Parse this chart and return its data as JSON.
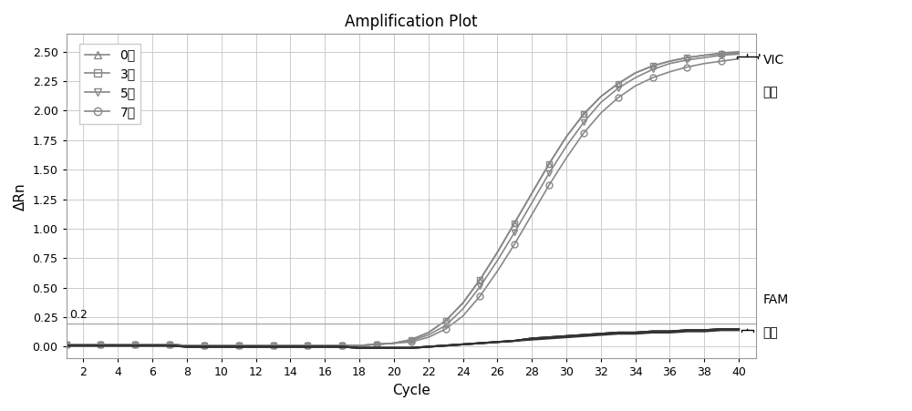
{
  "title": "Amplification Plot",
  "xlabel": "Cycle",
  "ylabel": "ΔRn",
  "xlim": [
    1,
    41
  ],
  "ylim": [
    -0.1,
    2.65
  ],
  "xticks": [
    2,
    4,
    6,
    8,
    10,
    12,
    14,
    16,
    18,
    20,
    22,
    24,
    26,
    28,
    30,
    32,
    34,
    36,
    38,
    40
  ],
  "yticks": [
    0.0,
    0.25,
    0.5,
    0.75,
    1.0,
    1.25,
    1.5,
    1.75,
    2.0,
    2.25,
    2.5
  ],
  "threshold_line": 0.2,
  "threshold_label": "0.2",
  "legend_labels": [
    "0天",
    "3天",
    "5天",
    "7天"
  ],
  "legend_markers": [
    "^",
    "s",
    "v",
    "o"
  ],
  "vic_label": "VIC",
  "vic_sub_label": "通道",
  "fam_label": "FAM",
  "fam_sub_label": "通道",
  "line_color": "#888888",
  "fam_color": "#333333",
  "bg_color": "#ffffff",
  "grid_color": "#cccccc",
  "cycles": [
    1,
    2,
    3,
    4,
    5,
    6,
    7,
    8,
    9,
    10,
    11,
    12,
    13,
    14,
    15,
    16,
    17,
    18,
    19,
    20,
    21,
    22,
    23,
    24,
    25,
    26,
    27,
    28,
    29,
    30,
    31,
    32,
    33,
    34,
    35,
    36,
    37,
    38,
    39,
    40
  ],
  "vic_curves": {
    "0day": [
      0.02,
      0.02,
      0.02,
      0.02,
      0.02,
      0.02,
      0.02,
      0.01,
      0.01,
      0.01,
      0.01,
      0.01,
      0.01,
      0.01,
      0.01,
      0.01,
      0.01,
      0.01,
      0.02,
      0.03,
      0.06,
      0.12,
      0.22,
      0.37,
      0.57,
      0.8,
      1.05,
      1.3,
      1.55,
      1.78,
      1.97,
      2.12,
      2.23,
      2.32,
      2.38,
      2.42,
      2.45,
      2.47,
      2.49,
      2.5
    ],
    "3day": [
      0.02,
      0.02,
      0.02,
      0.02,
      0.02,
      0.02,
      0.02,
      0.01,
      0.01,
      0.01,
      0.01,
      0.01,
      0.01,
      0.01,
      0.01,
      0.01,
      0.01,
      0.01,
      0.02,
      0.03,
      0.06,
      0.12,
      0.22,
      0.37,
      0.57,
      0.8,
      1.05,
      1.3,
      1.55,
      1.78,
      1.97,
      2.12,
      2.23,
      2.32,
      2.38,
      2.42,
      2.45,
      2.47,
      2.48,
      2.49
    ],
    "5day": [
      0.02,
      0.02,
      0.02,
      0.02,
      0.02,
      0.02,
      0.02,
      0.01,
      0.01,
      0.01,
      0.01,
      0.01,
      0.01,
      0.01,
      0.01,
      0.01,
      0.01,
      0.01,
      0.02,
      0.03,
      0.05,
      0.1,
      0.18,
      0.32,
      0.51,
      0.73,
      0.97,
      1.22,
      1.47,
      1.7,
      1.9,
      2.07,
      2.19,
      2.28,
      2.35,
      2.4,
      2.43,
      2.45,
      2.47,
      2.48
    ],
    "7day": [
      0.02,
      0.02,
      0.02,
      0.02,
      0.02,
      0.02,
      0.02,
      0.01,
      0.01,
      0.01,
      0.01,
      0.01,
      0.01,
      0.01,
      0.01,
      0.01,
      0.01,
      0.01,
      0.02,
      0.03,
      0.04,
      0.08,
      0.15,
      0.26,
      0.43,
      0.64,
      0.87,
      1.12,
      1.37,
      1.6,
      1.81,
      1.98,
      2.11,
      2.21,
      2.28,
      2.33,
      2.37,
      2.4,
      2.42,
      2.44
    ]
  },
  "fam_curves": {
    "0day": [
      0.01,
      0.01,
      0.01,
      0.01,
      0.01,
      0.01,
      0.01,
      0.0,
      0.0,
      0.0,
      0.0,
      0.0,
      0.0,
      0.0,
      0.0,
      0.0,
      0.0,
      -0.01,
      -0.01,
      -0.01,
      -0.01,
      -0.0,
      0.01,
      0.02,
      0.03,
      0.04,
      0.05,
      0.07,
      0.08,
      0.09,
      0.1,
      0.11,
      0.12,
      0.12,
      0.13,
      0.13,
      0.14,
      0.14,
      0.15,
      0.15
    ],
    "3day": [
      0.01,
      0.01,
      0.01,
      0.01,
      0.01,
      0.01,
      0.01,
      0.0,
      0.0,
      0.0,
      0.0,
      0.0,
      0.0,
      0.0,
      0.0,
      0.0,
      0.0,
      -0.01,
      -0.01,
      -0.01,
      -0.01,
      -0.0,
      0.01,
      0.02,
      0.03,
      0.04,
      0.05,
      0.07,
      0.08,
      0.09,
      0.1,
      0.11,
      0.12,
      0.12,
      0.13,
      0.13,
      0.14,
      0.14,
      0.15,
      0.15
    ],
    "5day": [
      0.01,
      0.01,
      0.01,
      0.01,
      0.01,
      0.01,
      0.01,
      0.0,
      0.0,
      0.0,
      0.0,
      0.0,
      0.0,
      0.0,
      0.0,
      0.0,
      0.0,
      -0.01,
      -0.01,
      -0.01,
      -0.01,
      -0.0,
      0.01,
      0.02,
      0.03,
      0.04,
      0.05,
      0.07,
      0.08,
      0.09,
      0.1,
      0.11,
      0.12,
      0.12,
      0.13,
      0.13,
      0.14,
      0.14,
      0.15,
      0.15
    ],
    "7day": [
      0.01,
      0.01,
      0.01,
      0.01,
      0.01,
      0.01,
      0.01,
      0.0,
      0.0,
      0.0,
      0.0,
      0.0,
      0.0,
      0.0,
      0.0,
      0.0,
      0.0,
      -0.01,
      -0.01,
      -0.01,
      -0.01,
      -0.0,
      0.01,
      0.02,
      0.03,
      0.04,
      0.05,
      0.06,
      0.07,
      0.08,
      0.09,
      0.1,
      0.11,
      0.11,
      0.12,
      0.12,
      0.13,
      0.13,
      0.14,
      0.14
    ]
  }
}
